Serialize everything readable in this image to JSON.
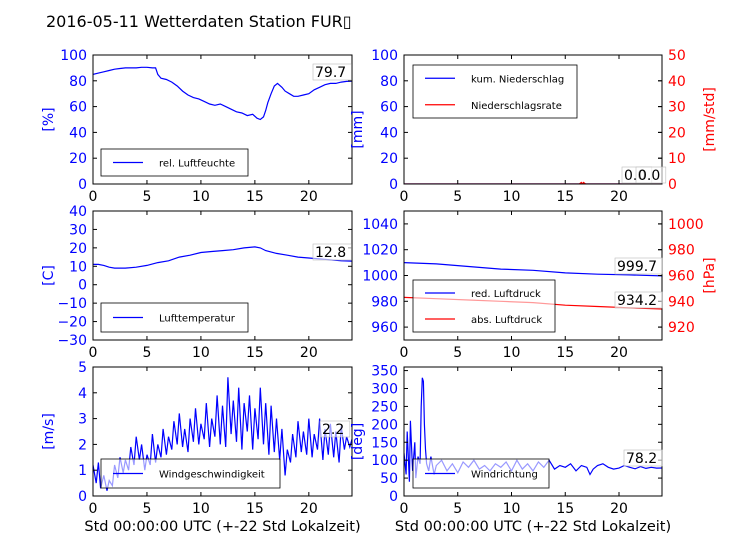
{
  "title": "2016-05-11 Wetterdaten Station FUR▯",
  "colors": {
    "primary": "#0000ff",
    "secondary": "#ff0000",
    "text": "#000000"
  },
  "chart_data": [
    {
      "id": "p1",
      "type": "line",
      "ylabel": "[%]",
      "xlim": [
        0,
        24
      ],
      "ylim": [
        0,
        100
      ],
      "yticks": [
        "0",
        "20",
        "40",
        "60",
        "80",
        "100"
      ],
      "xticks": [
        "0",
        "5",
        "10",
        "15",
        "20"
      ],
      "legend": {
        "position": "lower-left",
        "entries": [
          "rel. Luftfeuchte"
        ]
      },
      "annotations": [
        {
          "text": "79.7",
          "series": 0
        }
      ],
      "series": [
        {
          "name": "rel. Luftfeuchte",
          "axis": "left",
          "color": "#0000ff",
          "x": [
            0,
            0.5,
            1,
            1.5,
            2,
            2.5,
            3,
            3.5,
            4,
            4.5,
            5,
            5.5,
            5.8,
            6,
            6.3,
            6.8,
            7.3,
            7.8,
            8.3,
            8.8,
            9.3,
            9.8,
            10.3,
            10.8,
            11.3,
            11.8,
            12.3,
            12.8,
            13.3,
            13.8,
            14.3,
            14.8,
            15.2,
            15.5,
            15.8,
            16,
            16.2,
            16.5,
            16.8,
            17.1,
            17.5,
            17.8,
            18.2,
            18.6,
            19,
            19.5,
            20,
            20.5,
            21,
            21.5,
            22,
            22.5,
            23,
            23.5,
            24
          ],
          "y": [
            85,
            86,
            87,
            88,
            89,
            89.5,
            90,
            90,
            90,
            90.5,
            90.5,
            90,
            90,
            85,
            82,
            81,
            79,
            76,
            72,
            69,
            67,
            66,
            64,
            62,
            61,
            62,
            60,
            58,
            56,
            55,
            53,
            54,
            51,
            50,
            52,
            57,
            63,
            70,
            76,
            78,
            75,
            72,
            70,
            68,
            68,
            69,
            70,
            73,
            75,
            77,
            78,
            78,
            79,
            79.5,
            79.7
          ]
        }
      ]
    },
    {
      "id": "p2",
      "type": "line",
      "ylabel": "[mm]",
      "ylabel_right": "[mm/std]",
      "xlim": [
        0,
        24
      ],
      "ylim": [
        0,
        100
      ],
      "ylim_right": [
        0,
        50
      ],
      "yticks": [
        "0",
        "20",
        "40",
        "60",
        "80",
        "100"
      ],
      "yticks_right": [
        "0",
        "10",
        "20",
        "30",
        "40",
        "50"
      ],
      "xticks": [
        "0",
        "5",
        "10",
        "15",
        "20"
      ],
      "legend": {
        "position": "top-left",
        "entries": [
          "kum. Niederschlag",
          "Niederschlagsrate"
        ]
      },
      "annotations": [
        {
          "text": "0.0",
          "series": 0
        },
        {
          "text": "0.0",
          "series": 1
        }
      ],
      "series": [
        {
          "name": "kum. Niederschlag",
          "axis": "left",
          "color": "#0000ff",
          "x": [
            0,
            24
          ],
          "y": [
            0,
            0
          ]
        },
        {
          "name": "Niederschlagsrate",
          "axis": "right",
          "color": "#ff0000",
          "x": [
            0,
            16.3,
            16.5,
            16.6,
            16.7,
            16.9,
            24
          ],
          "y": [
            0,
            0,
            0.6,
            0,
            0.6,
            0,
            0
          ]
        }
      ]
    },
    {
      "id": "p3",
      "type": "line",
      "ylabel": "[C]",
      "xlim": [
        0,
        24
      ],
      "ylim": [
        -30,
        40
      ],
      "yticks": [
        "−30",
        "−20",
        "−10",
        "0",
        "10",
        "20",
        "30",
        "40"
      ],
      "xticks": [
        "0",
        "5",
        "10",
        "15",
        "20"
      ],
      "legend": {
        "position": "lower-left",
        "entries": [
          "Lufttemperatur"
        ]
      },
      "annotations": [
        {
          "text": "12.8",
          "series": 0
        }
      ],
      "series": [
        {
          "name": "Lufttemperatur",
          "axis": "left",
          "color": "#0000ff",
          "x": [
            0,
            0.5,
            1,
            1.5,
            2,
            3,
            4,
            5,
            6,
            7,
            8,
            9,
            10,
            11,
            12,
            13,
            14,
            15,
            15.5,
            16,
            17,
            18,
            19,
            20,
            21,
            22,
            23,
            24
          ],
          "y": [
            11,
            11,
            10.5,
            9.5,
            9,
            9,
            9.5,
            10.5,
            12,
            13,
            15,
            16,
            17.5,
            18,
            18.5,
            19,
            20,
            20.5,
            20,
            18.5,
            17,
            16,
            15,
            14.5,
            14,
            13.5,
            13,
            12.8
          ]
        }
      ]
    },
    {
      "id": "p4",
      "type": "line",
      "ylabel": "",
      "ylabel_right": "[hPa]",
      "xlim": [
        0,
        24
      ],
      "ylim": [
        950,
        1050
      ],
      "ylim_right": [
        910,
        1010
      ],
      "yticks": [
        "960",
        "980",
        "1000",
        "1020",
        "1040"
      ],
      "yticks_right": [
        "920",
        "940",
        "960",
        "980",
        "1000"
      ],
      "xticks": [
        "0",
        "5",
        "10",
        "15",
        "20"
      ],
      "legend": {
        "position": "lower-left",
        "entries": [
          "red. Luftdruck",
          "abs. Luftdruck"
        ]
      },
      "annotations": [
        {
          "text": "999.7",
          "series": 0
        },
        {
          "text": "934.2",
          "series": 1
        }
      ],
      "series": [
        {
          "name": "red. Luftdruck",
          "axis": "left",
          "color": "#0000ff",
          "x": [
            0,
            3,
            6,
            9,
            12,
            15,
            18,
            21,
            24
          ],
          "y": [
            1010,
            1009,
            1007,
            1005,
            1004,
            1002,
            1001,
            1000.5,
            999.7
          ]
        },
        {
          "name": "abs. Luftdruck",
          "axis": "left",
          "color": "#ff0000",
          "x": [
            0,
            3,
            6,
            9,
            12,
            15,
            18,
            21,
            24
          ],
          "y": [
            983,
            982,
            981,
            980,
            979,
            977,
            976,
            975,
            974
          ]
        }
      ]
    },
    {
      "id": "p5",
      "type": "line",
      "ylabel": "[m/s]",
      "xlabel": "Std 00:00:00 UTC (+-22 Std Lokalzeit)",
      "xlim": [
        0,
        24
      ],
      "ylim": [
        0,
        5
      ],
      "yticks": [
        "0",
        "1",
        "2",
        "3",
        "4",
        "5"
      ],
      "xticks": [
        "0",
        "5",
        "10",
        "15",
        "20"
      ],
      "legend": {
        "position": "lower-left",
        "entries": [
          "Windgeschwindigkeit"
        ]
      },
      "annotations": [
        {
          "text": "2.2",
          "series": 0
        }
      ],
      "series": [
        {
          "name": "Windgeschwindigkeit",
          "axis": "left",
          "color": "#0000ff",
          "x": [
            0,
            0.3,
            0.5,
            0.7,
            1,
            1.3,
            1.5,
            1.8,
            2,
            2.3,
            2.5,
            2.8,
            3,
            3.3,
            3.5,
            3.8,
            4,
            4.3,
            4.5,
            4.8,
            5,
            5.3,
            5.5,
            5.8,
            6,
            6.3,
            6.5,
            6.8,
            7,
            7.3,
            7.5,
            7.8,
            8,
            8.3,
            8.5,
            8.8,
            9,
            9.3,
            9.5,
            9.8,
            10,
            10.3,
            10.5,
            10.8,
            11,
            11.3,
            11.5,
            11.8,
            12,
            12.3,
            12.5,
            12.8,
            13,
            13.3,
            13.5,
            13.8,
            14,
            14.3,
            14.5,
            14.8,
            15,
            15.3,
            15.5,
            15.8,
            16,
            16.3,
            16.5,
            16.8,
            17,
            17.3,
            17.5,
            17.8,
            18,
            18.3,
            18.5,
            18.8,
            19,
            19.3,
            19.5,
            19.8,
            20,
            20.3,
            20.5,
            20.8,
            21,
            21.3,
            21.5,
            21.8,
            22,
            22.3,
            22.5,
            22.8,
            23,
            23.3,
            23.5,
            23.8,
            24
          ],
          "y": [
            1.2,
            0.5,
            1.3,
            0.3,
            0.8,
            0.2,
            0.6,
            0.4,
            1.2,
            0.7,
            1.5,
            0.9,
            1.4,
            1.0,
            1.9,
            1.2,
            2.3,
            1.4,
            2.0,
            1.0,
            1.6,
            1.2,
            2.4,
            1.3,
            2.0,
            1.5,
            2.6,
            1.6,
            2.3,
            1.8,
            2.9,
            2.0,
            3.2,
            1.9,
            2.6,
            1.7,
            3.0,
            2.1,
            3.4,
            2.0,
            2.8,
            2.2,
            3.6,
            1.9,
            3.0,
            2.3,
            3.9,
            2.0,
            3.5,
            1.9,
            4.6,
            2.4,
            3.7,
            2.1,
            4.2,
            1.8,
            3.6,
            2.5,
            3.9,
            1.8,
            3.4,
            2.2,
            4.2,
            2.0,
            3.6,
            1.6,
            3.5,
            1.7,
            3.0,
            1.4,
            2.6,
            0.8,
            1.8,
            1.3,
            2.4,
            1.5,
            2.9,
            1.7,
            2.5,
            1.6,
            3.0,
            1.5,
            2.4,
            1.8,
            3.0,
            1.4,
            2.6,
            1.6,
            2.8,
            1.5,
            2.5,
            1.3,
            2.7,
            1.8,
            2.3,
            1.9,
            2.2
          ]
        }
      ]
    },
    {
      "id": "p6",
      "type": "line",
      "ylabel": "[deg]",
      "xlabel": "Std 00:00:00 UTC (+-22 Std Lokalzeit)",
      "xlim": [
        0,
        24
      ],
      "ylim": [
        0,
        360
      ],
      "yticks": [
        "0",
        "50",
        "100",
        "150",
        "200",
        "250",
        "300",
        "350"
      ],
      "xticks": [
        "0",
        "5",
        "10",
        "15",
        "20"
      ],
      "legend": {
        "position": "lower-left",
        "entries": [
          "Windrichtung"
        ]
      },
      "annotations": [
        {
          "text": "78.2",
          "series": 0
        }
      ],
      "series": [
        {
          "name": "Windrichtung",
          "axis": "left",
          "color": "#0000ff",
          "x": [
            0,
            0.2,
            0.3,
            0.5,
            0.6,
            0.8,
            1,
            1.1,
            1.3,
            1.5,
            1.6,
            1.7,
            1.8,
            1.9,
            2,
            2.1,
            2.3,
            2.5,
            2.8,
            3,
            3.5,
            4,
            4.5,
            5,
            5.5,
            6,
            6.5,
            7,
            7.5,
            8,
            8.5,
            9,
            9.5,
            10,
            10.5,
            11,
            11.5,
            12,
            12.5,
            13,
            13.5,
            14,
            14.5,
            15,
            15.5,
            16,
            16.5,
            17,
            17.3,
            17.6,
            18,
            18.5,
            19,
            19.5,
            20,
            20.5,
            21,
            21.5,
            22,
            22.5,
            23,
            23.5,
            24
          ],
          "y": [
            120,
            60,
            180,
            40,
            210,
            70,
            150,
            50,
            110,
            90,
            250,
            330,
            320,
            200,
            130,
            90,
            70,
            110,
            60,
            85,
            100,
            70,
            90,
            65,
            95,
            80,
            100,
            75,
            85,
            70,
            90,
            80,
            95,
            70,
            100,
            75,
            90,
            70,
            95,
            80,
            100,
            75,
            85,
            80,
            90,
            70,
            85,
            80,
            60,
            75,
            85,
            90,
            80,
            75,
            78,
            85,
            80,
            76,
            82,
            77,
            80,
            78,
            78.2
          ]
        }
      ]
    }
  ]
}
